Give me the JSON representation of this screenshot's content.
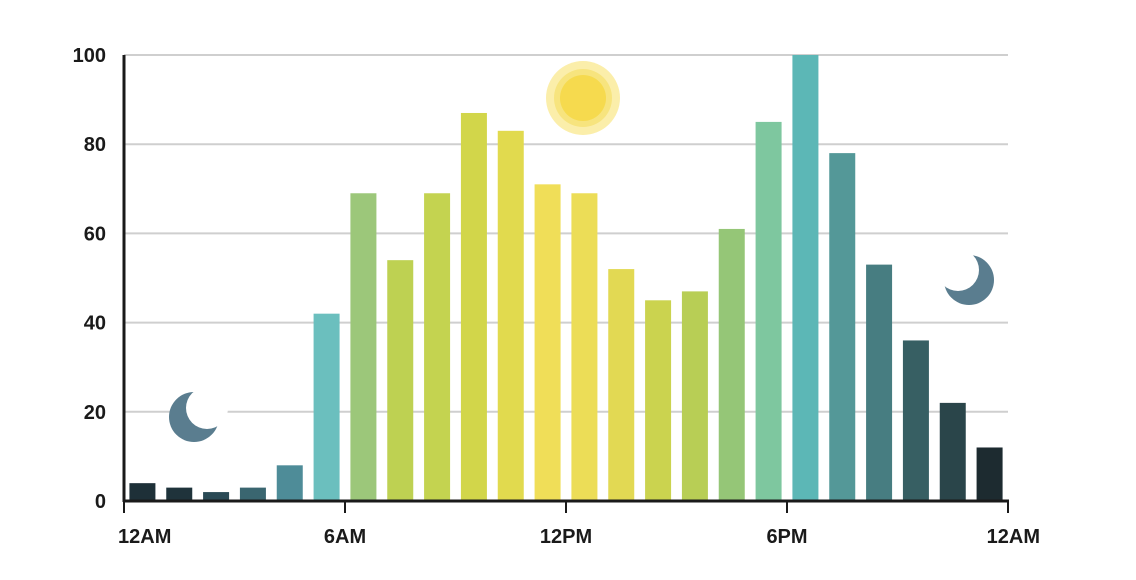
{
  "chart_data": {
    "type": "bar",
    "title": "",
    "xlabel": "",
    "ylabel": "",
    "ylim": [
      0,
      100
    ],
    "yticks": [
      "0",
      "20",
      "40",
      "60",
      "80",
      "100"
    ],
    "xticks": [
      "12AM",
      "6AM",
      "12PM",
      "6PM",
      "12AM"
    ],
    "grid": true,
    "categories": [
      "12AM",
      "1AM",
      "2AM",
      "3AM",
      "4AM",
      "5AM",
      "6AM",
      "7AM",
      "8AM",
      "9AM",
      "10AM",
      "11AM",
      "12PM",
      "1PM",
      "2PM",
      "3PM",
      "4PM",
      "5PM",
      "6PM",
      "7PM",
      "8PM",
      "9PM",
      "10PM",
      "11PM"
    ],
    "values": [
      4,
      3,
      2,
      3,
      8,
      42,
      69,
      54,
      69,
      87,
      83,
      71,
      69,
      52,
      45,
      47,
      61,
      85,
      100,
      78,
      53,
      36,
      22,
      12
    ],
    "colors": [
      "#1e3038",
      "#1f333b",
      "#2a4a55",
      "#3a6670",
      "#4e8c98",
      "#6bbfbe",
      "#9cc77a",
      "#bed152",
      "#c4d350",
      "#d2d64a",
      "#e1da4e",
      "#f0de58",
      "#ecdd57",
      "#e2d953",
      "#cbd34f",
      "#b8ce55",
      "#95c677",
      "#7ec79f",
      "#5cb7b6",
      "#549898",
      "#477d81",
      "#375f63",
      "#2a454a",
      "#1d2b30"
    ],
    "decorations": [
      "moon-icon",
      "sun-icon",
      "moon-icon"
    ]
  }
}
